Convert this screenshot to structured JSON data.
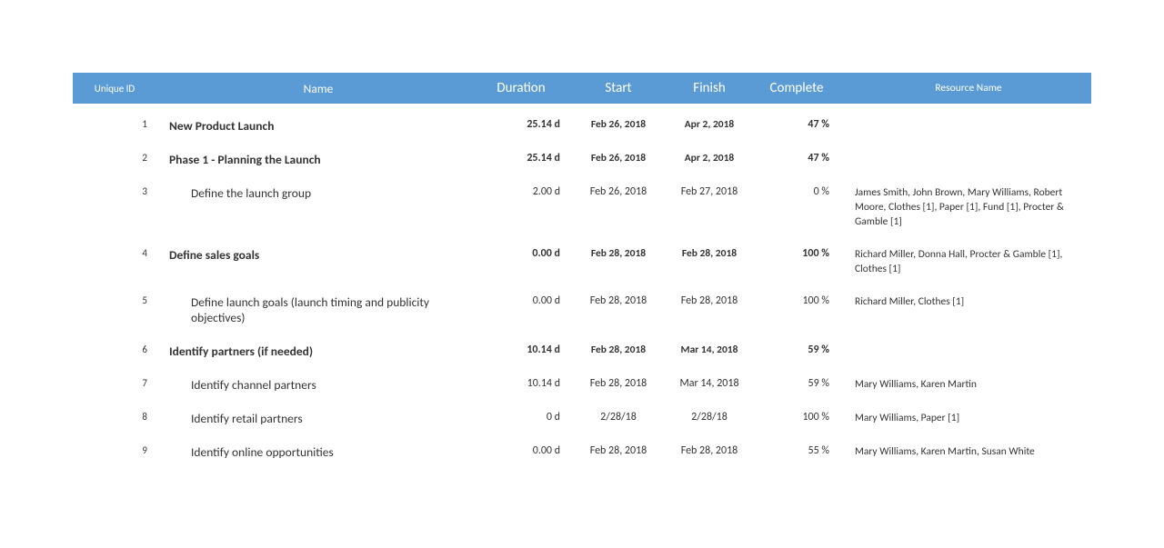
{
  "table": {
    "columns": {
      "id": "Unique ID",
      "name": "Name",
      "duration": "Duration",
      "start": "Start",
      "finish": "Finish",
      "complete": "Complete",
      "resource": "Resource Name"
    },
    "header_bg": "#5b9bd5",
    "header_text_color": "#ffffff",
    "rows": [
      {
        "id": "1",
        "name": "New Product Launch",
        "duration": "25.14 d",
        "start": "Feb 26, 2018",
        "finish": "Apr 2, 2018",
        "complete": "47 %",
        "resource": "",
        "bold": true,
        "indent": 0
      },
      {
        "id": "2",
        "name": "Phase 1 - Planning the Launch",
        "duration": "25.14 d",
        "start": "Feb 26, 2018",
        "finish": "Apr 2, 2018",
        "complete": "47 %",
        "resource": "",
        "bold": true,
        "indent": 0
      },
      {
        "id": "3",
        "name": "Define the launch group",
        "duration": "2.00 d",
        "start": "Feb 26, 2018",
        "finish": "Feb 27, 2018",
        "complete": "0 %",
        "resource": "James Smith, John Brown, Mary Williams, Robert Moore, Clothes [1], Paper [1], Fund [1], Procter & Gamble [1]",
        "bold": false,
        "indent": 1
      },
      {
        "id": "4",
        "name": "Define sales goals",
        "duration": "0.00 d",
        "start": "Feb 28, 2018",
        "finish": "Feb 28, 2018",
        "complete": "100 %",
        "resource": "Richard Miller, Donna Hall, Procter & Gamble [1], Clothes [1]",
        "bold": true,
        "indent": 0
      },
      {
        "id": "5",
        "name": "Define launch goals (launch timing and publicity objectives)",
        "duration": "0.00 d",
        "start": "Feb 28, 2018",
        "finish": "Feb 28, 2018",
        "complete": "100 %",
        "resource": "Richard Miller, Clothes [1]",
        "bold": false,
        "indent": 1
      },
      {
        "id": "6",
        "name": "Identify partners (if needed)",
        "duration": "10.14 d",
        "start": "Feb 28, 2018",
        "finish": "Mar 14, 2018",
        "complete": "59 %",
        "resource": "",
        "bold": true,
        "indent": 0
      },
      {
        "id": "7",
        "name": "Identify channel partners",
        "duration": "10.14 d",
        "start": "Feb 28, 2018",
        "finish": "Mar 14, 2018",
        "complete": "59 %",
        "resource": "Mary Williams, Karen Martin",
        "bold": false,
        "indent": 1
      },
      {
        "id": "8",
        "name": "Identify retail partners",
        "duration": "0 d",
        "start": "2/28/18",
        "finish": "2/28/18",
        "complete": "100 %",
        "resource": "Mary Williams, Paper [1]",
        "bold": false,
        "indent": 1
      },
      {
        "id": "9",
        "name": "Identify online opportunities",
        "duration": "0.00 d",
        "start": "Feb 28, 2018",
        "finish": "Feb 28, 2018",
        "complete": "55 %",
        "resource": "Mary Williams, Karen Martin, Susan White",
        "bold": false,
        "indent": 1
      }
    ]
  }
}
